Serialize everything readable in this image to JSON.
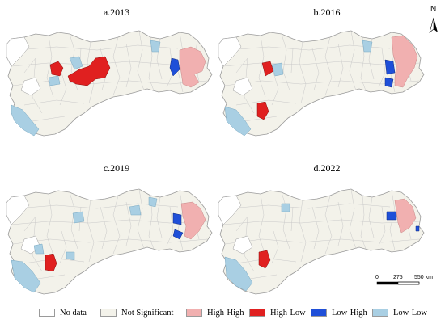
{
  "panels": [
    {
      "id": "a",
      "title": "a.2013"
    },
    {
      "id": "b",
      "title": "b.2016"
    },
    {
      "id": "c",
      "title": "c.2019"
    },
    {
      "id": "d",
      "title": "d.2022"
    }
  ],
  "north": {
    "label": "N"
  },
  "scale_bar": {
    "labels": [
      "0",
      "275",
      "550 km"
    ]
  },
  "legend": {
    "items": [
      {
        "label": "No data",
        "color": "#ffffff"
      },
      {
        "label": "Not Significant",
        "color": "#f3f2ea"
      },
      {
        "label": "High-High",
        "color": "#f1b0b0"
      },
      {
        "label": "High-Low",
        "color": "#e02020"
      },
      {
        "label": "Low-High",
        "color": "#1f4fd8"
      },
      {
        "label": "Low-Low",
        "color": "#a9cfe3"
      }
    ]
  }
}
